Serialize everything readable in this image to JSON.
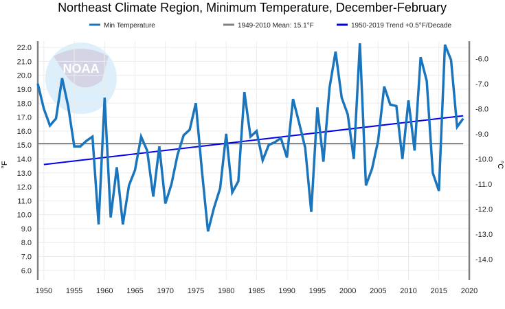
{
  "chart_data": {
    "type": "line",
    "title": "Northeast Climate Region, Minimum Temperature, December-February",
    "ylabel": "°F",
    "ylabel_right": "°C",
    "xlim": [
      1949,
      2020
    ],
    "ylim": [
      5.3,
      22.45
    ],
    "grid": true,
    "legend_position": "top",
    "x_ticks": [
      1950,
      1955,
      1960,
      1965,
      1970,
      1975,
      1980,
      1985,
      1990,
      1995,
      2000,
      2005,
      2010,
      2015,
      2020
    ],
    "y_ticks": [
      6,
      7,
      8,
      9,
      10,
      11,
      12,
      13,
      14,
      15,
      16,
      17,
      18,
      19,
      20,
      21,
      22
    ],
    "y_ticks_right": [
      -6,
      -7,
      -8,
      -9,
      -10,
      -11,
      -12,
      -13,
      -14
    ],
    "series": [
      {
        "name": "Min Temperature",
        "color": "#1a75bc",
        "x": [
          1949,
          1950,
          1951,
          1952,
          1953,
          1954,
          1955,
          1956,
          1957,
          1958,
          1959,
          1960,
          1961,
          1962,
          1963,
          1964,
          1965,
          1966,
          1967,
          1968,
          1969,
          1970,
          1971,
          1972,
          1973,
          1974,
          1975,
          1976,
          1977,
          1978,
          1979,
          1980,
          1981,
          1982,
          1983,
          1984,
          1985,
          1986,
          1987,
          1988,
          1989,
          1990,
          1991,
          1992,
          1993,
          1994,
          1995,
          1996,
          1997,
          1998,
          1999,
          2000,
          2001,
          2002,
          2003,
          2004,
          2005,
          2006,
          2007,
          2008,
          2009,
          2010,
          2011,
          2012,
          2013,
          2014,
          2015,
          2016,
          2017,
          2018,
          2019
        ],
        "values": [
          19.4,
          17.6,
          16.4,
          16.9,
          19.8,
          17.8,
          14.9,
          14.9,
          15.3,
          15.6,
          9.3,
          18.4,
          9.8,
          13.4,
          9.3,
          12.1,
          13.2,
          15.6,
          14.6,
          11.3,
          14.9,
          10.8,
          12.2,
          14.3,
          15.7,
          16.1,
          18.0,
          13.2,
          8.8,
          10.5,
          11.9,
          15.8,
          11.6,
          12.4,
          18.8,
          15.6,
          16.0,
          13.9,
          15.0,
          15.2,
          15.5,
          14.1,
          18.3,
          16.6,
          14.8,
          10.2,
          17.7,
          13.8,
          19.1,
          21.7,
          18.4,
          17.2,
          14.0,
          22.3,
          12.1,
          13.3,
          15.3,
          19.2,
          17.9,
          17.8,
          14.0,
          18.2,
          14.6,
          21.3,
          19.6,
          13.0,
          11.7,
          22.2,
          21.1,
          16.3,
          16.9
        ]
      },
      {
        "name": "1949-2010 Mean: 15.1°F",
        "color": "#808080",
        "x": [
          1949,
          2019
        ],
        "values": [
          15.1,
          15.1
        ]
      },
      {
        "name": "1950-2019 Trend +0.5°F/Decade",
        "color": "#0000ee",
        "x": [
          1950,
          2019
        ],
        "values": [
          13.6,
          17.1
        ]
      }
    ]
  }
}
